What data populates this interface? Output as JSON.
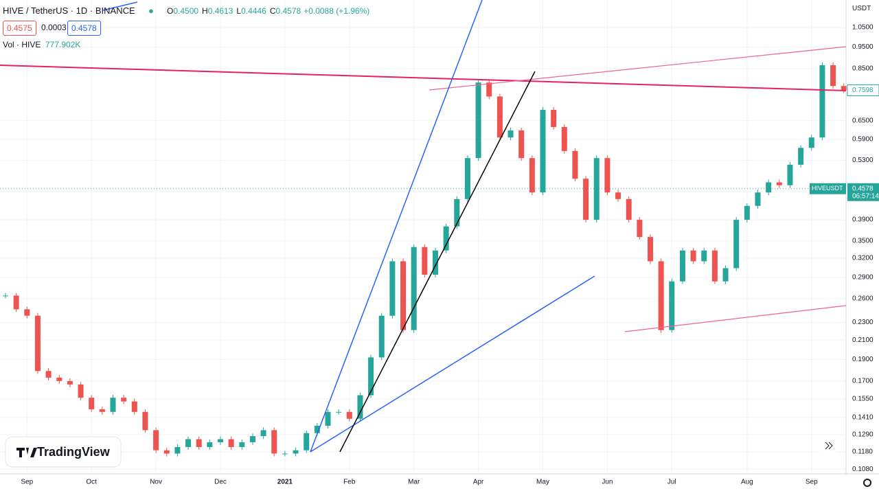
{
  "chart_data": {
    "type": "candlestick",
    "title": "HIVE / TetherUS · 1D · BINANCE",
    "ohlc_legend": [
      {
        "label": "O",
        "value": "0.4500"
      },
      {
        "label": "H",
        "value": "0.4613"
      },
      {
        "label": "L",
        "value": "0.4446"
      },
      {
        "label": "C",
        "value": "0.4578"
      }
    ],
    "change": "+0.0088 (+1.96%)",
    "quote_boxes": [
      "0.4575",
      "0.0003",
      "0.4578"
    ],
    "volume_label": "Vol · HIVE",
    "volume_value": "777.902K",
    "currency": "USDT",
    "logo": "TradingView",
    "log_scale": true,
    "grid": true,
    "categories": [
      null,
      null,
      "Sep",
      null,
      null,
      null,
      null,
      null,
      "Oct",
      null,
      null,
      null,
      null,
      null,
      "Nov",
      null,
      null,
      null,
      null,
      null,
      "Dec",
      null,
      null,
      null,
      null,
      null,
      "2021",
      null,
      null,
      null,
      null,
      null,
      "Feb",
      null,
      null,
      null,
      null,
      null,
      "Mar",
      null,
      null,
      null,
      null,
      null,
      "Apr",
      null,
      null,
      null,
      null,
      null,
      "May",
      null,
      null,
      null,
      null,
      null,
      "Jun",
      null,
      null,
      null,
      null,
      null,
      "Jul",
      null,
      null,
      null,
      null,
      null,
      null,
      "Aug",
      null,
      null,
      null,
      null,
      null,
      "Sep",
      null,
      null,
      null
    ],
    "series": [
      {
        "name": "HIVE / TetherUS",
        "up_color": "#26a69a",
        "down_color": "#ef5350",
        "values": [
          0.264,
          0.246,
          0.238,
          0.179,
          0.173,
          0.17,
          0.167,
          0.156,
          0.147,
          0.145,
          0.156,
          0.153,
          0.145,
          0.132,
          0.119,
          0.117,
          0.121,
          0.126,
          0.121,
          0.124,
          0.126,
          0.121,
          0.124,
          0.128,
          0.132,
          0.117,
          0.117,
          0.119,
          0.13,
          0.135,
          0.145,
          0.145,
          0.14,
          0.158,
          0.192,
          0.238,
          0.315,
          0.221,
          0.339,
          0.294,
          0.333,
          0.377,
          0.434,
          0.536,
          0.791,
          0.736,
          0.596,
          0.618,
          0.536,
          0.449,
          0.687,
          0.629,
          0.556,
          0.482,
          0.39,
          0.536,
          0.449,
          0.434,
          0.39,
          0.357,
          0.315,
          0.221,
          0.284,
          0.333,
          0.315,
          0.333,
          0.284,
          0.304,
          0.39,
          0.419,
          0.449,
          0.473,
          0.466,
          0.518,
          0.565,
          0.596,
          0.865,
          0.777,
          0.7598
        ]
      }
    ],
    "ylim": [
      0.1054,
      1.21
    ],
    "yticks": [
      {
        "value": 1.05,
        "label": "1.0500"
      },
      {
        "value": 0.95,
        "label": "0.9500"
      },
      {
        "value": 0.85,
        "label": "0.8500"
      },
      {
        "value": 0.65,
        "label": "0.6500"
      },
      {
        "value": 0.59,
        "label": "0.5900"
      },
      {
        "value": 0.53,
        "label": "0.5300"
      },
      {
        "value": 0.39,
        "label": "0.3900"
      },
      {
        "value": 0.35,
        "label": "0.3500"
      },
      {
        "value": 0.32,
        "label": "0.3200"
      },
      {
        "value": 0.29,
        "label": "0.2900"
      },
      {
        "value": 0.26,
        "label": "0.2600"
      },
      {
        "value": 0.23,
        "label": "0.2300"
      },
      {
        "value": 0.21,
        "label": "0.2100"
      },
      {
        "value": 0.19,
        "label": "0.1900"
      },
      {
        "value": 0.17,
        "label": "0.1700"
      },
      {
        "value": 0.155,
        "label": "0.1550"
      },
      {
        "value": 0.141,
        "label": "0.1410"
      },
      {
        "value": 0.129,
        "label": "0.1290"
      },
      {
        "value": 0.118,
        "label": "0.1180"
      },
      {
        "value": 0.108,
        "label": "0.1080"
      }
    ],
    "price_tags": [
      {
        "value": 0.7598,
        "label": "0.7598"
      },
      {
        "value": 0.4578,
        "label": "0.4578",
        "name": "HIVEUSDT",
        "countdown": "06:57:14"
      }
    ]
  }
}
